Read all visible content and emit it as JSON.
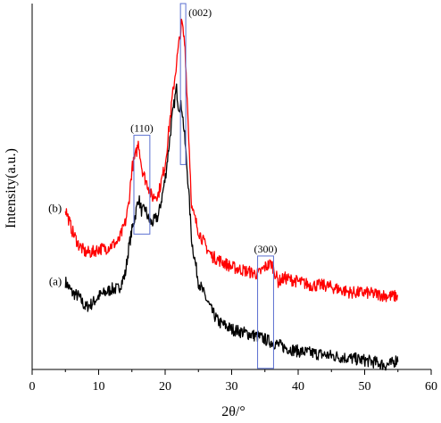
{
  "chart_data": {
    "type": "line",
    "xlabel": "2θ/°",
    "ylabel": "Intensity(a.u.)",
    "xlim": [
      0,
      60
    ],
    "ylim": [
      0,
      100
    ],
    "x_ticks": [
      "0",
      "10",
      "20",
      "30",
      "40",
      "50",
      "60"
    ],
    "grid": false,
    "series": [
      {
        "label": "(a)",
        "color": "#000000",
        "points": [
          [
            5,
            24
          ],
          [
            6,
            21
          ],
          [
            7,
            20
          ],
          [
            8,
            17
          ],
          [
            9,
            18
          ],
          [
            10,
            20
          ],
          [
            11,
            21
          ],
          [
            12,
            22
          ],
          [
            13,
            22
          ],
          [
            14,
            26
          ],
          [
            14.5,
            33
          ],
          [
            15,
            38
          ],
          [
            15.5,
            42
          ],
          [
            16,
            47
          ],
          [
            16.5,
            43
          ],
          [
            17,
            44
          ],
          [
            17.5,
            41
          ],
          [
            18,
            40
          ],
          [
            19,
            42
          ],
          [
            20,
            52
          ],
          [
            21,
            68
          ],
          [
            21.7,
            77
          ],
          [
            22,
            72
          ],
          [
            22.5,
            72
          ],
          [
            23,
            62
          ],
          [
            23.5,
            50
          ],
          [
            24,
            35
          ],
          [
            25,
            24
          ],
          [
            26,
            20
          ],
          [
            27,
            16
          ],
          [
            28,
            13
          ],
          [
            29,
            12
          ],
          [
            30,
            11
          ],
          [
            32,
            10
          ],
          [
            34,
            9
          ],
          [
            36,
            7.5
          ],
          [
            38,
            6
          ],
          [
            40,
            5
          ],
          [
            42,
            4.5
          ],
          [
            44,
            4
          ],
          [
            46,
            3.5
          ],
          [
            48,
            3
          ],
          [
            50,
            2.5
          ],
          [
            52,
            1.8
          ],
          [
            53,
            1.2
          ],
          [
            54,
            1.5
          ],
          [
            55,
            3
          ]
        ]
      },
      {
        "label": "(b)",
        "color": "#ff0000",
        "points": [
          [
            5,
            44
          ],
          [
            6,
            38
          ],
          [
            7,
            34
          ],
          [
            8,
            32
          ],
          [
            9,
            32
          ],
          [
            10,
            33
          ],
          [
            11,
            33
          ],
          [
            12,
            34
          ],
          [
            13,
            35
          ],
          [
            14,
            40
          ],
          [
            14.5,
            45
          ],
          [
            15,
            55
          ],
          [
            15.5,
            58
          ],
          [
            16,
            62
          ],
          [
            16.5,
            55
          ],
          [
            17,
            52
          ],
          [
            17.5,
            50
          ],
          [
            18,
            47
          ],
          [
            19,
            48
          ],
          [
            20,
            56
          ],
          [
            21,
            73
          ],
          [
            22,
            88
          ],
          [
            22.5,
            95
          ],
          [
            23,
            88
          ],
          [
            23.5,
            66
          ],
          [
            24,
            44
          ],
          [
            25,
            38
          ],
          [
            26,
            34
          ],
          [
            27,
            31
          ],
          [
            28,
            30
          ],
          [
            29,
            29
          ],
          [
            30,
            28
          ],
          [
            32,
            27
          ],
          [
            34,
            26
          ],
          [
            35,
            28
          ],
          [
            36,
            29
          ],
          [
            37,
            24
          ],
          [
            38,
            25
          ],
          [
            40,
            24
          ],
          [
            42,
            23
          ],
          [
            44,
            23
          ],
          [
            46,
            22
          ],
          [
            48,
            21
          ],
          [
            50,
            21
          ],
          [
            52,
            20.5
          ],
          [
            54,
            20
          ],
          [
            55,
            20
          ]
        ]
      }
    ],
    "annotations": [
      {
        "text": "(110)",
        "x_range": [
          15.3,
          17.7
        ],
        "y_range": [
          37,
          64
        ]
      },
      {
        "text": "(002)",
        "x_range": [
          22.3,
          23.1
        ],
        "y_range": [
          56,
          100
        ]
      },
      {
        "text": "(300)",
        "x_range": [
          33.9,
          36.3
        ],
        "y_range": [
          0.3,
          31
        ]
      }
    ]
  }
}
